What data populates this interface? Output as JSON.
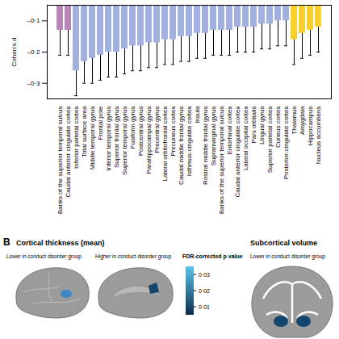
{
  "chart_data": {
    "type": "bar",
    "y_label": "Cohen's d",
    "categories": [
      "Banks of the superior temporal sulcus",
      "Caudal anterior cingulate cortex",
      "Inferior parietal cortex",
      "Total surface area",
      "Middle temporal gyrus",
      "Frontal pole",
      "Inferior temporal gyrus",
      "Superior frontal gyrus",
      "Superior temporal gyrus",
      "Fusiform gyrus",
      "Postcentral gyrus",
      "Parahippocampal gyrus",
      "Precentral gyrus",
      "Lateral orbitofrontal cortex",
      "Precuneus cortex",
      "Caudal middle frontal gyrus",
      "Isthmus-cingulate cortex",
      "Insula",
      "Rostral middle frontal gyrus",
      "Supramarginal gyrus",
      "Banks of the superior temporal sulcus",
      "Entorhinal cortex",
      "Caudal anterior cingulate cortex",
      "Lateral occipital cortex",
      "Pars orbitalis",
      "Lingual gyrus",
      "Superior parietal cortex",
      "Cuneus cortex",
      "Posterior-cingulate cortex",
      "Thalamus",
      "Amygdala",
      "Hippocampus",
      "Nucleus accumbens"
    ],
    "values": [
      -0.13,
      -0.13,
      -0.26,
      -0.23,
      -0.22,
      -0.21,
      -0.2,
      -0.2,
      -0.19,
      -0.18,
      -0.18,
      -0.17,
      -0.17,
      -0.16,
      -0.16,
      -0.15,
      -0.15,
      -0.14,
      -0.14,
      -0.13,
      -0.13,
      -0.13,
      -0.12,
      -0.12,
      -0.12,
      -0.11,
      -0.11,
      -0.1,
      -0.1,
      -0.16,
      -0.14,
      -0.13,
      -0.12
    ],
    "errors": [
      0.08,
      0.08,
      0.08,
      0.07,
      0.08,
      0.08,
      0.08,
      0.08,
      0.08,
      0.08,
      0.08,
      0.08,
      0.08,
      0.08,
      0.08,
      0.08,
      0.08,
      0.08,
      0.08,
      0.08,
      0.08,
      0.08,
      0.08,
      0.08,
      0.08,
      0.08,
      0.08,
      0.08,
      0.08,
      0.08,
      0.08,
      0.08,
      0.08
    ],
    "colors": [
      "#b883b5",
      "#b883b5",
      "#a2b0e0",
      "#a2b0e0",
      "#a2b0e0",
      "#a2b0e0",
      "#a2b0e0",
      "#a2b0e0",
      "#a2b0e0",
      "#a2b0e0",
      "#a2b0e0",
      "#a2b0e0",
      "#a2b0e0",
      "#a2b0e0",
      "#a2b0e0",
      "#a2b0e0",
      "#a2b0e0",
      "#a2b0e0",
      "#a2b0e0",
      "#a2b0e0",
      "#a2b0e0",
      "#a2b0e0",
      "#a2b0e0",
      "#a2b0e0",
      "#a2b0e0",
      "#a2b0e0",
      "#a2b0e0",
      "#a2b0e0",
      "#a2b0e0",
      "#f7d02c",
      "#f7d02c",
      "#f7d02c",
      "#f7d02c"
    ],
    "ylim": [
      -0.35,
      -0.05
    ],
    "yticks": [
      {
        "value": -0.3,
        "label": "–0·3"
      },
      {
        "value": -0.2,
        "label": "–0·2"
      },
      {
        "value": -0.1,
        "label": "–0·1"
      }
    ],
    "grid": false
  },
  "panel_b": {
    "label": "B",
    "cortical": {
      "title": "Cortical thickness (mean)",
      "views": [
        {
          "caption": "Lower in conduct disorder group",
          "highlight": "#3d86c6"
        },
        {
          "caption": "Higher in conduct disorder group",
          "highlight": "#12466f"
        }
      ]
    },
    "colorbar": {
      "title": "FDR-corrected p value",
      "range": [
        0.005,
        0.035
      ],
      "ticks": [
        {
          "value": 0.03,
          "label": "0·03"
        },
        {
          "value": 0.02,
          "label": "0·02"
        },
        {
          "value": 0.01,
          "label": "0·01"
        }
      ],
      "colors": [
        "#0a2c4a",
        "#5ec3ef"
      ]
    },
    "subcortical": {
      "title": "Subcortical volume",
      "caption": "Lower in conduct disorder group",
      "highlight": "#12466f"
    }
  }
}
